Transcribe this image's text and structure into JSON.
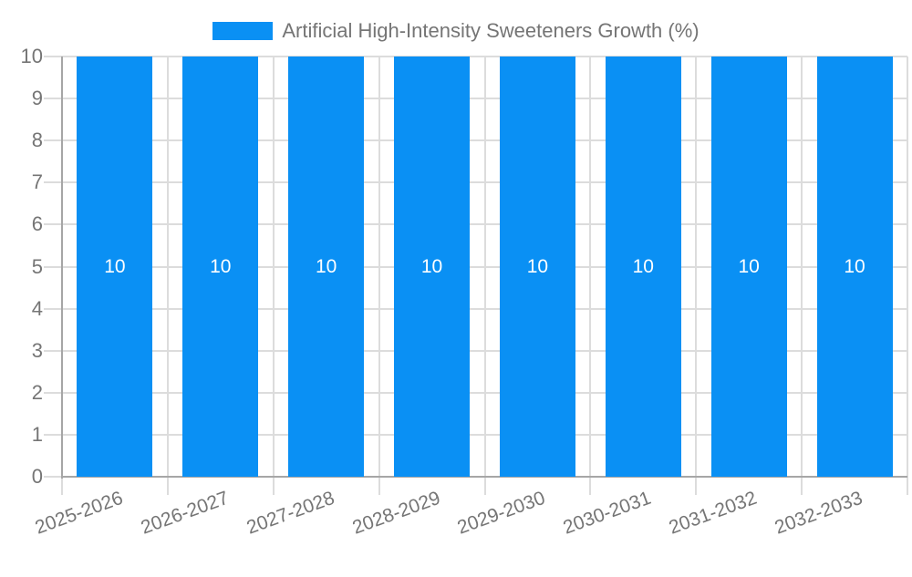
{
  "legend": {
    "swatch_color": "#0a90f4"
  },
  "chart_data": {
    "type": "bar",
    "title": "",
    "xlabel": "",
    "ylabel": "",
    "categories": [
      "2025-2026",
      "2026-2027",
      "2027-2028",
      "2028-2029",
      "2029-2030",
      "2030-2031",
      "2031-2032",
      "2032-2033"
    ],
    "series": [
      {
        "name": "Artificial High-Intensity Sweeteners Growth (%)",
        "values": [
          10,
          10,
          10,
          10,
          10,
          10,
          10,
          10
        ],
        "color": "#0a90f4"
      }
    ],
    "bar_labels": [
      "10",
      "10",
      "10",
      "10",
      "10",
      "10",
      "10",
      "10"
    ],
    "ylim": [
      0,
      10
    ],
    "yticks": [
      0,
      1,
      2,
      3,
      4,
      5,
      6,
      7,
      8,
      9,
      10
    ],
    "grid": true,
    "legend_position": "top-center",
    "x_label_rotation_deg": -20,
    "colors": {
      "bar": "#0a90f4",
      "bar_label_text": "#ffffff",
      "axis_text": "#757575",
      "gridline": "#dcdcdc",
      "axis_line": "#a6a6a6",
      "background": "#ffffff"
    }
  }
}
